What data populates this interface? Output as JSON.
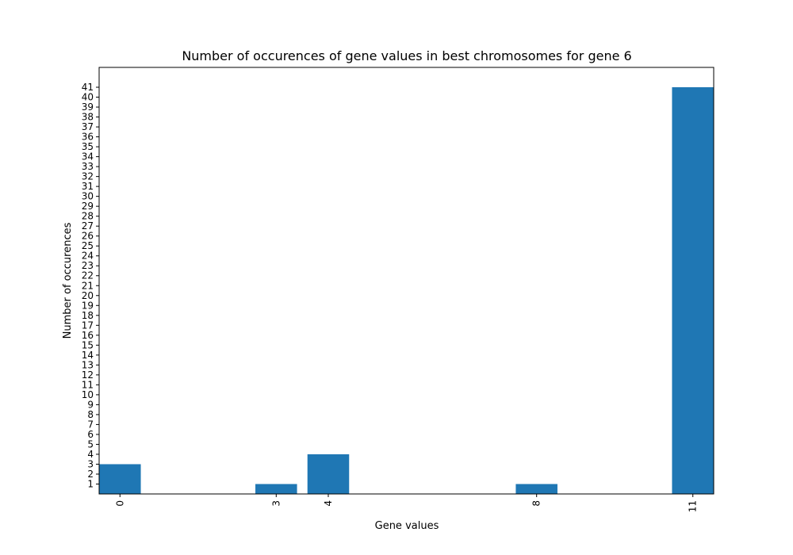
{
  "chart_data": {
    "type": "bar",
    "title": "Number of occurences of gene values in best chromosomes for gene 6",
    "xlabel": "Gene values",
    "ylabel": "Number of occurences",
    "x": [
      0,
      3,
      4,
      8,
      11
    ],
    "values": [
      3,
      1,
      4,
      1,
      41
    ],
    "xlim": [
      -0.4,
      11.4
    ],
    "ylim": [
      0,
      43
    ],
    "yticks": [
      1,
      2,
      3,
      4,
      5,
      6,
      7,
      8,
      9,
      10,
      11,
      12,
      13,
      14,
      15,
      16,
      17,
      18,
      19,
      20,
      21,
      22,
      23,
      24,
      25,
      26,
      27,
      28,
      29,
      30,
      31,
      32,
      33,
      34,
      35,
      36,
      37,
      38,
      39,
      40,
      41
    ],
    "xtick_rotation": "vertical",
    "bar_width": 0.8,
    "bar_color": "#1f77b4",
    "grid": false,
    "legend": "none"
  }
}
